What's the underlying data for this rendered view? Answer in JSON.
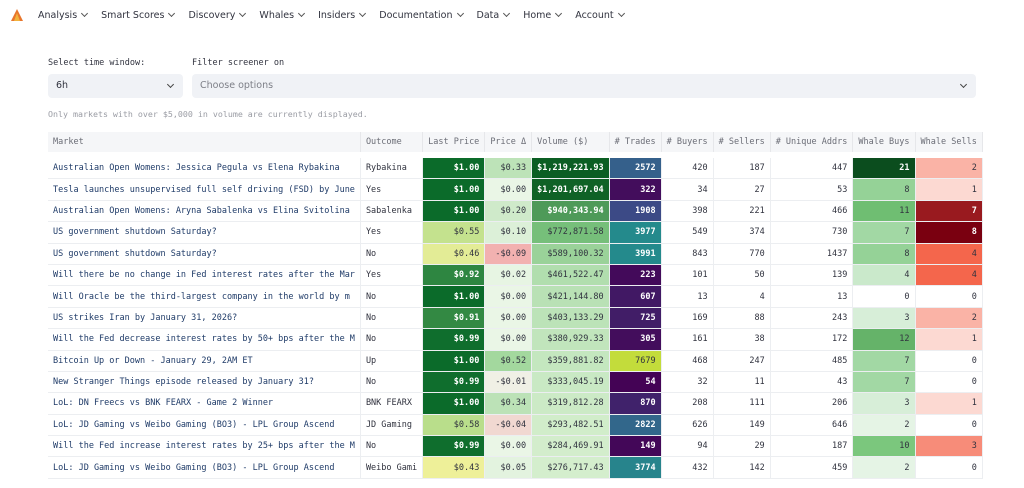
{
  "nav": {
    "items": [
      "Analysis",
      "Smart Scores",
      "Discovery",
      "Whales",
      "Insiders",
      "Documentation",
      "Data",
      "Home",
      "Account"
    ]
  },
  "controls": {
    "time_window": {
      "label": "Select time window:",
      "value": "6h"
    },
    "filter": {
      "label": "Filter screener on",
      "placeholder": "Choose options"
    }
  },
  "note": "Only markets with over $5,000 in volume are currently displayed.",
  "table": {
    "columns": [
      "Market",
      "Outcome",
      "Last Price",
      "Price Δ",
      "Volume ($)",
      "# Trades",
      "# Buyers",
      "# Sellers",
      "# Unique Addrs",
      "Whale Buys",
      "Whale Sells"
    ],
    "rows": [
      [
        "Australian Open Womens: Jessica Pegula vs Elena Rybakina",
        "Rybakina",
        "$1.00",
        "$0.33",
        "$1,219,221.93",
        "2572",
        "420",
        "187",
        "447",
        "21",
        "2"
      ],
      [
        "Tesla launches unsupervised full self driving (FSD) by June",
        "Yes",
        "$1.00",
        "$0.00",
        "$1,201,697.04",
        "322",
        "34",
        "27",
        "53",
        "8",
        "1"
      ],
      [
        "Australian Open Womens: Aryna Sabalenka vs Elina Svitolina",
        "Sabalenka",
        "$1.00",
        "$0.20",
        "$940,343.94",
        "1908",
        "398",
        "221",
        "466",
        "11",
        "7"
      ],
      [
        "US government shutdown Saturday?",
        "Yes",
        "$0.55",
        "$0.10",
        "$772,871.58",
        "3977",
        "549",
        "374",
        "730",
        "7",
        "8"
      ],
      [
        "US government shutdown Saturday?",
        "No",
        "$0.46",
        "-$0.09",
        "$589,100.32",
        "3991",
        "843",
        "770",
        "1437",
        "8",
        "4"
      ],
      [
        "Will there be no change in Fed interest rates after the Mar",
        "Yes",
        "$0.92",
        "$0.02",
        "$461,522.47",
        "223",
        "101",
        "50",
        "139",
        "4",
        "4"
      ],
      [
        "Will Oracle be the third-largest company in the world by m",
        "No",
        "$1.00",
        "$0.00",
        "$421,144.80",
        "607",
        "13",
        "4",
        "13",
        "0",
        "0"
      ],
      [
        "US strikes Iran by January 31, 2026?",
        "No",
        "$0.91",
        "$0.00",
        "$403,133.29",
        "725",
        "169",
        "88",
        "243",
        "3",
        "2"
      ],
      [
        "Will the Fed decrease interest rates by 50+ bps after the M",
        "No",
        "$0.99",
        "$0.00",
        "$380,929.33",
        "305",
        "161",
        "38",
        "172",
        "12",
        "1"
      ],
      [
        "Bitcoin Up or Down - January 29, 2AM ET",
        "Up",
        "$1.00",
        "$0.52",
        "$359,881.82",
        "7679",
        "468",
        "247",
        "485",
        "7",
        "0"
      ],
      [
        "New Stranger Things episode released by January 31?",
        "No",
        "$0.99",
        "-$0.01",
        "$333,045.19",
        "54",
        "32",
        "11",
        "43",
        "7",
        "0"
      ],
      [
        "LoL: DN Freecs vs BNK FEARX - Game 2 Winner",
        "BNK FEARX",
        "$1.00",
        "$0.34",
        "$319,812.28",
        "870",
        "208",
        "111",
        "206",
        "3",
        "1"
      ],
      [
        "LoL: JD Gaming vs Weibo Gaming (BO3) - LPL Group Ascend",
        "JD Gaming",
        "$0.58",
        "-$0.04",
        "$293,482.51",
        "2822",
        "626",
        "149",
        "646",
        "2",
        "0"
      ],
      [
        "Will the Fed increase interest rates by 25+ bps after the M",
        "No",
        "$0.99",
        "$0.00",
        "$284,469.91",
        "149",
        "94",
        "29",
        "187",
        "10",
        "3"
      ],
      [
        "LoL: JD Gaming vs Weibo Gaming (BO3) - LPL Group Ascend",
        "Weibo Gami",
        "$0.43",
        "$0.05",
        "$276,717.43",
        "3774",
        "432",
        "142",
        "459",
        "2",
        "0"
      ]
    ]
  }
}
